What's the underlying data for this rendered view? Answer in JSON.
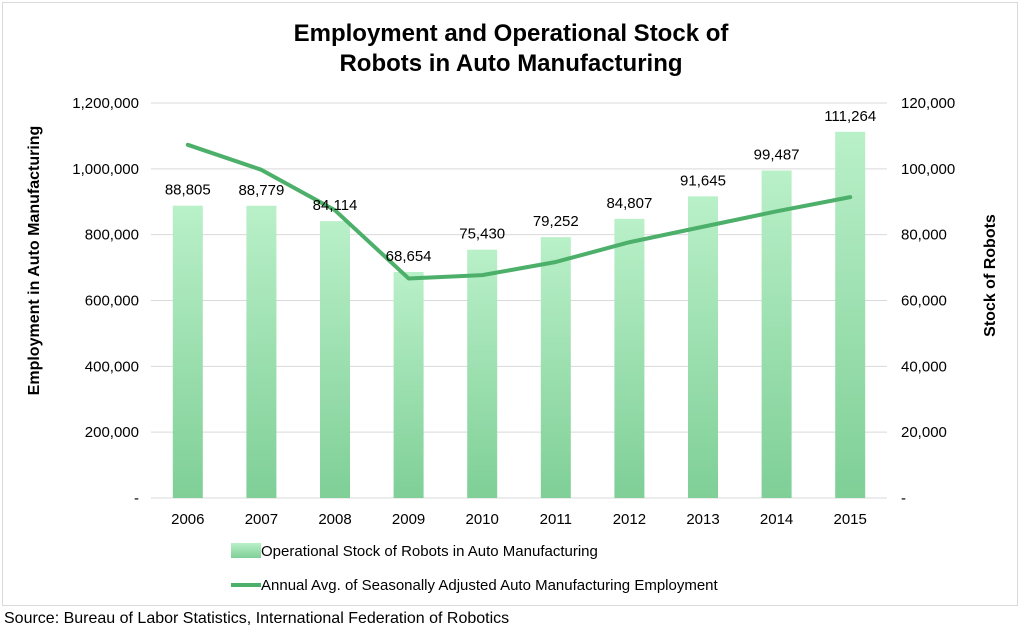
{
  "chart_data": {
    "type": "bar",
    "title_line1": "Employment and Operational Stock of",
    "title_line2": "Robots in Auto Manufacturing",
    "ylabel_left": "Employment in Auto Manufacturing",
    "ylabel_right": "Stock of Robots",
    "categories": [
      "2006",
      "2007",
      "2008",
      "2009",
      "2010",
      "2011",
      "2012",
      "2013",
      "2014",
      "2015"
    ],
    "left_axis": {
      "min": 0,
      "max": 1200000,
      "step": 200000,
      "ticks": [
        "-",
        "200,000",
        "400,000",
        "600,000",
        "800,000",
        "1,000,000",
        "1,200,000"
      ]
    },
    "right_axis": {
      "min": 0,
      "max": 120000,
      "step": 20000,
      "ticks": [
        "-",
        "20,000",
        "40,000",
        "60,000",
        "80,000",
        "100,000",
        "120,000"
      ]
    },
    "grid": true,
    "legend_position": "bottom",
    "series": [
      {
        "name": "Operational Stock of Robots in Auto Manufacturing",
        "kind": "bar",
        "axis": "right",
        "color": "#a8e6b8",
        "values": [
          88805,
          88779,
          84114,
          68654,
          75430,
          79252,
          84807,
          91645,
          99487,
          111264
        ],
        "labels": [
          "88,805",
          "88,779",
          "84,114",
          "68,654",
          "75,430",
          "79,252",
          "84,807",
          "91,645",
          "99,487",
          "111,264"
        ]
      },
      {
        "name": "Annual Avg. of  Seasonally Adjusted Auto Manufacturing Employment",
        "kind": "line",
        "axis": "left",
        "color": "#4caf6a",
        "values": [
          1073000,
          997000,
          874000,
          667000,
          677000,
          717000,
          777000,
          824000,
          871000,
          914000
        ]
      }
    ]
  },
  "source": "Source: Bureau of Labor Statistics, International Federation of Robotics"
}
